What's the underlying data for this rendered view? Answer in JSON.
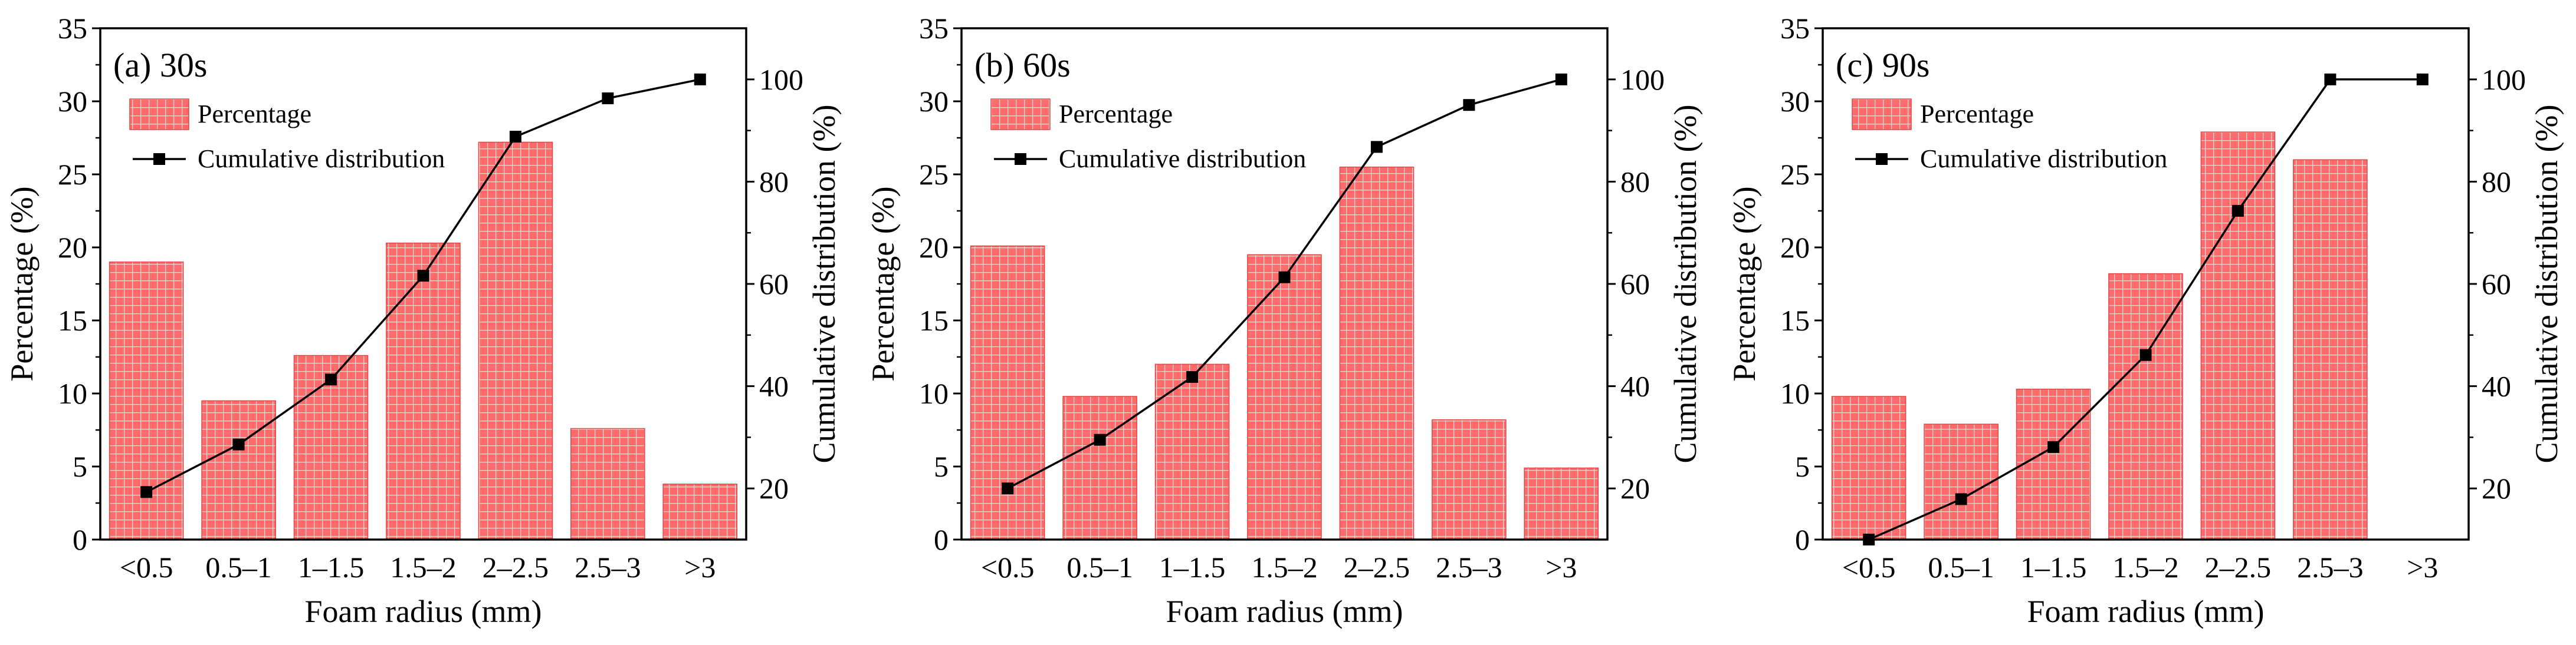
{
  "colors": {
    "bar_fill": "#ff6b6b",
    "bar_grid": "#ffd2d2",
    "line": "#000000"
  },
  "chart_data": [
    {
      "type": "bar+line",
      "title": "(a) 30s",
      "xlabel": "Foam radius (mm)",
      "ylabel": "Percentage (%)",
      "y2label": "Cumulative distribution (%)",
      "categories": [
        "<0.5",
        "0.5–1",
        "1–1.5",
        "1.5–2",
        "2–2.5",
        "2.5–3",
        ">3"
      ],
      "ylim": [
        0,
        35
      ],
      "yticks": [
        0,
        5,
        10,
        15,
        20,
        25,
        30,
        35
      ],
      "y2lim": [
        10,
        110
      ],
      "y2ticks": [
        20,
        40,
        60,
        80,
        100
      ],
      "legend": {
        "bar": "Percentage",
        "line": "Cumulative distribution",
        "position": "top-left"
      },
      "series": [
        {
          "name": "Percentage",
          "kind": "bar",
          "values": [
            19.0,
            9.5,
            12.6,
            20.3,
            27.2,
            7.6,
            3.8
          ]
        },
        {
          "name": "Cumulative distribution",
          "kind": "line",
          "values": [
            19.3,
            28.6,
            41.3,
            61.6,
            88.8,
            96.3,
            100.0
          ]
        }
      ]
    },
    {
      "type": "bar+line",
      "title": "(b) 60s",
      "xlabel": "Foam radius (mm)",
      "ylabel": "Percentage (%)",
      "y2label": "Cumulative distribution (%)",
      "categories": [
        "<0.5",
        "0.5–1",
        "1–1.5",
        "1.5–2",
        "2–2.5",
        "2.5–3",
        ">3"
      ],
      "ylim": [
        0,
        35
      ],
      "yticks": [
        0,
        5,
        10,
        15,
        20,
        25,
        30,
        35
      ],
      "y2lim": [
        10,
        110
      ],
      "y2ticks": [
        20,
        40,
        60,
        80,
        100
      ],
      "legend": {
        "bar": "Percentage",
        "line": "Cumulative distribution",
        "position": "top-left"
      },
      "series": [
        {
          "name": "Percentage",
          "kind": "bar",
          "values": [
            20.1,
            9.8,
            12.0,
            19.5,
            25.5,
            8.2,
            4.9
          ]
        },
        {
          "name": "Cumulative distribution",
          "kind": "line",
          "values": [
            20.0,
            29.5,
            41.8,
            61.3,
            86.8,
            95.0,
            100.0
          ]
        }
      ]
    },
    {
      "type": "bar+line",
      "title": "(c) 90s",
      "xlabel": "Foam radius (mm)",
      "ylabel": "Percentage (%)",
      "y2label": "Cumulative distribution (%)",
      "categories": [
        "<0.5",
        "0.5–1",
        "1–1.5",
        "1.5–2",
        "2–2.5",
        "2.5–3",
        ">3"
      ],
      "ylim": [
        0,
        35
      ],
      "yticks": [
        0,
        5,
        10,
        15,
        20,
        25,
        30,
        35
      ],
      "y2lim": [
        10,
        110
      ],
      "y2ticks": [
        20,
        40,
        60,
        80,
        100
      ],
      "legend": {
        "bar": "Percentage",
        "line": "Cumulative distribution",
        "position": "top-left"
      },
      "series": [
        {
          "name": "Percentage",
          "kind": "bar",
          "values": [
            9.8,
            7.9,
            10.3,
            18.2,
            27.9,
            26.0,
            0
          ]
        },
        {
          "name": "Cumulative distribution",
          "kind": "line",
          "values": [
            10.0,
            17.9,
            28.1,
            46.1,
            74.3,
            100.0,
            100.0
          ]
        }
      ]
    }
  ]
}
